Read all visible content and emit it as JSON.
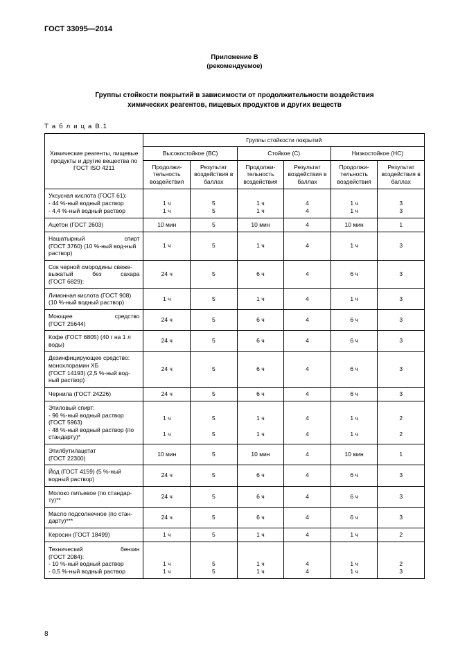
{
  "doc_id": "ГОСТ  33095—2014",
  "appendix_line1": "Приложение В",
  "appendix_line2": "(рекомендуемое)",
  "title_line1": "Группы стойкости покрытий в зависимости от продолжительности воздействия",
  "title_line2": "химических реагентов, пищевых продуктов и других веществ",
  "table_label": "Т а б л и ц а  В.1",
  "head": {
    "reagent": "Химические реагенты, пищевые продукты и другие вещества по ГОСТ ISO 4211",
    "group": "Группы стойкости покрытий",
    "g1": "Высокостойкое (ВС)",
    "g2": "Стойкое (С)",
    "g3": "Низкостойкое (НС)",
    "dur": "Продолжи-тельность воздействия",
    "res": "Результат воздействия в баллах"
  },
  "rows": [
    {
      "name": "Уксусная кислота (ГОСТ 61):<br>- 44 %-ный водный раствор<br>- 4,4 %-ный водный раствор",
      "d1": "<br>1 ч<br>1 ч",
      "r1": "<br>5<br>5",
      "d2": "<br>1 ч<br>1 ч",
      "r2": "<br>4<br>4",
      "d3": "<br>1 ч<br>1 ч",
      "r3": "<br>3<br>3"
    },
    {
      "name": "Ацетон (ГОСТ 2603)",
      "d1": "10 мин",
      "r1": "5",
      "d2": "10 мин",
      "r2": "4",
      "d3": "10 мин",
      "r3": "1"
    },
    {
      "name": "<span class='justify' style='display:block'>Нашатырный спирт</span>(ГОСТ 3760) (10 %-ный вод-ный раствор)",
      "d1": "1 ч",
      "r1": "5",
      "d2": "1 ч",
      "r2": "4",
      "d3": "1 ч",
      "r3": "3"
    },
    {
      "name": "Сок черной смородины свеже-<span class='justify' style='display:block'>выжатый без сахара</span>(ГОСТ 6829):",
      "d1": "24 ч",
      "r1": "5",
      "d2": "6 ч",
      "r2": "4",
      "d3": "6 ч",
      "r3": "3"
    },
    {
      "name": "Лимонная кислота (ГОСТ 908) (10 %-ный водный раствор)",
      "d1": "1 ч",
      "r1": "5",
      "d2": "1 ч",
      "r2": "4",
      "d3": "1 ч",
      "r3": "3"
    },
    {
      "name": "<span class='justify' style='display:block'>Моющее средство</span>(ГОСТ 25644)",
      "d1": "24 ч",
      "r1": "5",
      "d2": "6 ч",
      "r2": "4",
      "d3": "6 ч",
      "r3": "3"
    },
    {
      "name": "Кофе (ГОСТ 6805) (40 г на 1 л воды)",
      "d1": "24 ч",
      "r1": "5",
      "d2": "6 ч",
      "r2": "4",
      "d3": "6 ч",
      "r3": "3"
    },
    {
      "name": "Дезинфицирующее средство: монохлорамин ХБ<br>(ГОСТ 14193) (2,5 %-ный вод-ный раствор)",
      "d1": "24 ч",
      "r1": "5",
      "d2": "6 ч",
      "r2": "4",
      "d3": "6 ч",
      "r3": "3"
    },
    {
      "name": "Чернила (ГОСТ 24226)",
      "d1": "24 ч",
      "r1": "5",
      "d2": "6 ч",
      "r2": "4",
      "d3": "6 ч",
      "r3": "3"
    },
    {
      "name": "Этиловый спирт:<br>- 96 %-ный водный раствор (ГОСТ 5963)<br>- 48 %-ный водный раствор (по стандарту)*",
      "d1": "<br>1 ч<br><br>1 ч",
      "r1": "<br>5<br><br>5",
      "d2": "<br>1 ч<br><br>1 ч",
      "r2": "<br>4<br><br>4",
      "d3": "<br>1 ч<br><br>1 ч",
      "r3": "<br>2<br><br>2"
    },
    {
      "name": "Этилбутилацетат<br>(ГОСТ 22300)",
      "d1": "10 мин",
      "r1": "5",
      "d2": "10 мин",
      "r2": "4",
      "d3": "10 мин",
      "r3": "1"
    },
    {
      "name": "Йод (ГОСТ 4159) (5 %-ный водный раствор)",
      "d1": "24 ч",
      "r1": "5",
      "d2": "6 ч",
      "r2": "4",
      "d3": "6 ч",
      "r3": "3"
    },
    {
      "name": "Молоко питьевое (по стандар-ту)**",
      "d1": "24 ч",
      "r1": "5",
      "d2": "6 ч",
      "r2": "4",
      "d3": "6 ч",
      "r3": "3"
    },
    {
      "name": "Масло подсолнечное (по стан-дарту)***",
      "d1": "24 ч",
      "r1": "5",
      "d2": "6 ч",
      "r2": "4",
      "d3": "6 ч",
      "r3": "3"
    },
    {
      "name": "Керосин (ГОСТ 18499)",
      "d1": "1 ч",
      "r1": "5",
      "d2": "1 ч",
      "r2": "4",
      "d3": "1 ч",
      "r3": "2"
    },
    {
      "name": "<span class='justify' style='display:block'>Технический бензин</span>(ГОСТ 2084):<br>- 10 %-ный водный раствор<br>- 0,5 %-ный водный раствор",
      "d1": "<br><br>1 ч<br>1 ч",
      "r1": "<br><br>5<br>5",
      "d2": "<br><br>1 ч<br>1 ч",
      "r2": "<br><br>4<br>4",
      "d3": "<br><br>1 ч<br>1 ч",
      "r3": "<br><br>2<br>3"
    }
  ],
  "page_number": "8"
}
